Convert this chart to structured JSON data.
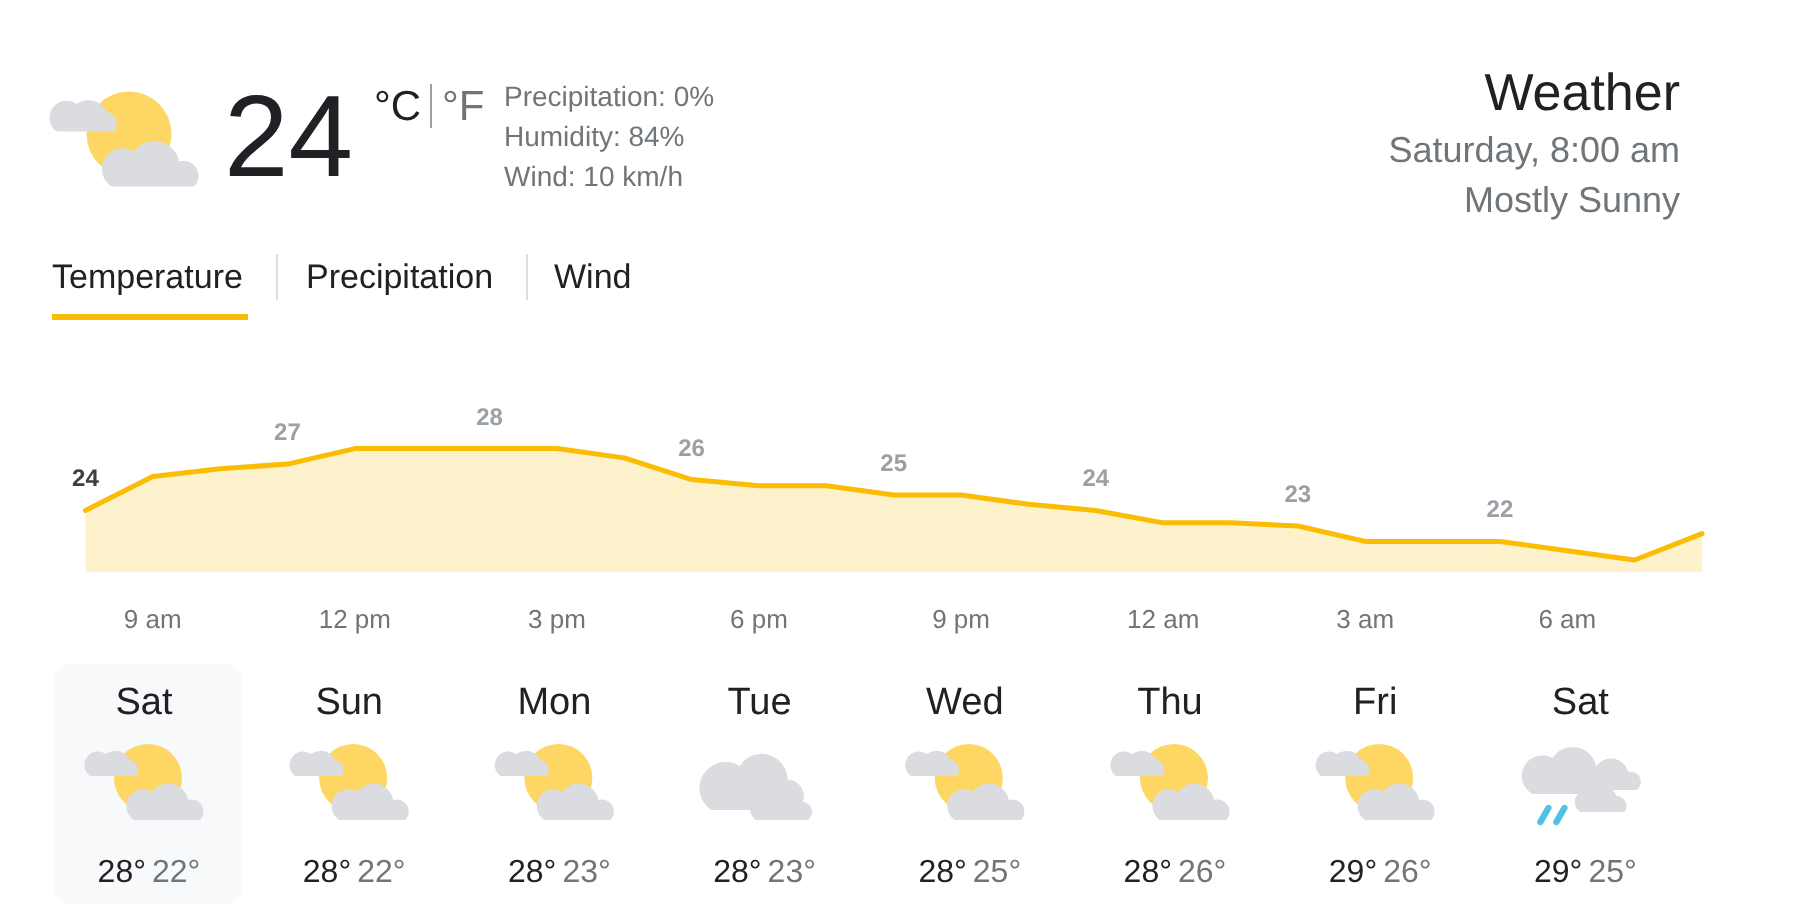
{
  "chart_data": [
    {
      "type": "other",
      "title": "Weather",
      "subtitle": "Saturday, 8:00 am",
      "annotations": [
        "24",
        "°C",
        "°F",
        "Precipitation: 0%",
        "Humidity: 84%",
        "Wind: 10 km/h",
        "Mostly Sunny",
        "Temperature",
        "Precipitation",
        "Wind"
      ]
    },
    {
      "type": "area",
      "color": "#fbbc04",
      "categories": [
        null,
        "9 am",
        null,
        null,
        "12 pm",
        null,
        null,
        "3 pm",
        null,
        null,
        "6 pm",
        null,
        null,
        "9 pm",
        null,
        null,
        "12 am",
        null,
        null,
        "3 am",
        null,
        null,
        "6 am",
        null,
        null
      ],
      "values": [
        24,
        26.2,
        26.7,
        27,
        28,
        28,
        28,
        28,
        27.4,
        26,
        25.6,
        25.6,
        25,
        25,
        24.4,
        24,
        23.2,
        23.2,
        23,
        22,
        22,
        22,
        21.4,
        20.8,
        22.5
      ],
      "value_labels": [
        "24",
        null,
        null,
        "27",
        null,
        null,
        "28",
        null,
        null,
        "26",
        null,
        null,
        "25",
        null,
        null,
        "24",
        null,
        null,
        "23",
        null,
        null,
        "22",
        null,
        null,
        null
      ],
      "tick_labels": "x"
    },
    {
      "type": "other",
      "categories": [
        "Sat",
        "Sun",
        "Mon",
        "Tue",
        "Wed",
        "Thu",
        "Fri",
        "Sat"
      ],
      "annotations": [
        "28°",
        "22°",
        "28°",
        "22°",
        "28°",
        "23°",
        "28°",
        "23°",
        "28°",
        "25°",
        "28°",
        "26°",
        "29°",
        "26°",
        "29°",
        "25°"
      ]
    }
  ]
}
